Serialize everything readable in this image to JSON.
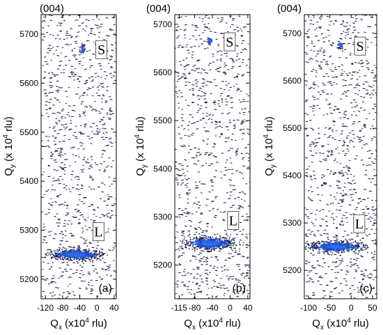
{
  "chart_data": [
    {
      "type": "scatter",
      "panel_label": "(a)",
      "reflection": "(004)",
      "xlabel_main": "Q",
      "xlabel_sub": "x",
      "xlabel_tail": " (x10",
      "xlabel_exp": "4",
      "xlabel_unit": " rlu)",
      "ylabel_main": "Q",
      "ylabel_sub": "y",
      "ylabel_tail": " (x 10",
      "ylabel_exp": "4",
      "ylabel_unit": " rlu)",
      "xlim": [
        -130,
        45
      ],
      "ylim": [
        5160,
        5740
      ],
      "xticks": [
        -120,
        -80,
        -40,
        0,
        40
      ],
      "xtick_labels": [
        "-120",
        "-80",
        "-40",
        "0",
        "40"
      ],
      "yticks": [
        5200,
        5300,
        5400,
        5500,
        5600,
        5700
      ],
      "ytick_labels": [
        "5200",
        "5300",
        "5400",
        "5500",
        "5600",
        "5700"
      ],
      "peaks": [
        {
          "label": "S",
          "name": "substrate",
          "x": -35,
          "y": 5670,
          "spread_x": 3,
          "spread_y": 4
        },
        {
          "label": "L",
          "name": "layer",
          "x": -50,
          "y": 5250,
          "spread_x": 28,
          "spread_y": 5
        }
      ],
      "colors": {
        "dots": "#1b2150",
        "peak": "#1f4fcc",
        "peak_core": "#2d6de8"
      }
    },
    {
      "type": "scatter",
      "panel_label": "(b)",
      "reflection": "(004)",
      "xlabel_main": "Q",
      "xlabel_sub": "x",
      "xlabel_tail": " (x10",
      "xlabel_exp": "4",
      "xlabel_unit": " rlu)",
      "ylabel_main": "Q",
      "ylabel_sub": "y",
      "ylabel_tail": " (x 10",
      "ylabel_exp": "4",
      "ylabel_unit": " rlu)",
      "xlim": [
        -125,
        45
      ],
      "ylim": [
        5130,
        5720
      ],
      "xticks": [
        -115,
        -80,
        -40,
        0,
        40
      ],
      "xtick_labels": [
        "-115",
        "-80",
        "-40",
        "0",
        "40"
      ],
      "yticks": [
        5200,
        5300,
        5400,
        5500,
        5600,
        5700
      ],
      "ytick_labels": [
        "5200",
        "5300",
        "5400",
        "5500",
        "5600",
        "5700"
      ],
      "peaks": [
        {
          "label": "S",
          "name": "substrate",
          "x": -45,
          "y": 5665,
          "spread_x": 3,
          "spread_y": 4
        },
        {
          "label": "L",
          "name": "layer",
          "x": -45,
          "y": 5245,
          "spread_x": 27,
          "spread_y": 6
        }
      ],
      "colors": {
        "dots": "#1b2150",
        "peak": "#1f4fcc",
        "peak_core": "#2d6de8"
      }
    },
    {
      "type": "scatter",
      "panel_label": "(c)",
      "reflection": "(004)",
      "xlabel_main": "Q",
      "xlabel_sub": "x",
      "xlabel_tail": " (x10",
      "xlabel_exp": "4",
      "xlabel_unit": " rlu)",
      "ylabel_main": "Q",
      "ylabel_sub": "y",
      "ylabel_tail": " (x 10",
      "ylabel_exp": "4",
      "ylabel_unit": " rlu)",
      "xlim": [
        -110,
        60
      ],
      "ylim": [
        5140,
        5740
      ],
      "xticks": [
        -100,
        -50,
        0,
        50
      ],
      "xtick_labels": [
        "-100",
        "-50",
        "0",
        "50"
      ],
      "yticks": [
        5200,
        5300,
        5400,
        5500,
        5600,
        5700
      ],
      "ytick_labels": [
        "5200",
        "5300",
        "5400",
        "5500",
        "5600",
        "5700"
      ],
      "peaks": [
        {
          "label": "S",
          "name": "substrate",
          "x": -25,
          "y": 5675,
          "spread_x": 3,
          "spread_y": 4
        },
        {
          "label": "L",
          "name": "layer",
          "x": -35,
          "y": 5250,
          "spread_x": 30,
          "spread_y": 5
        }
      ],
      "colors": {
        "dots": "#1b2150",
        "peak": "#1f4fcc",
        "peak_core": "#2d6de8"
      }
    }
  ]
}
